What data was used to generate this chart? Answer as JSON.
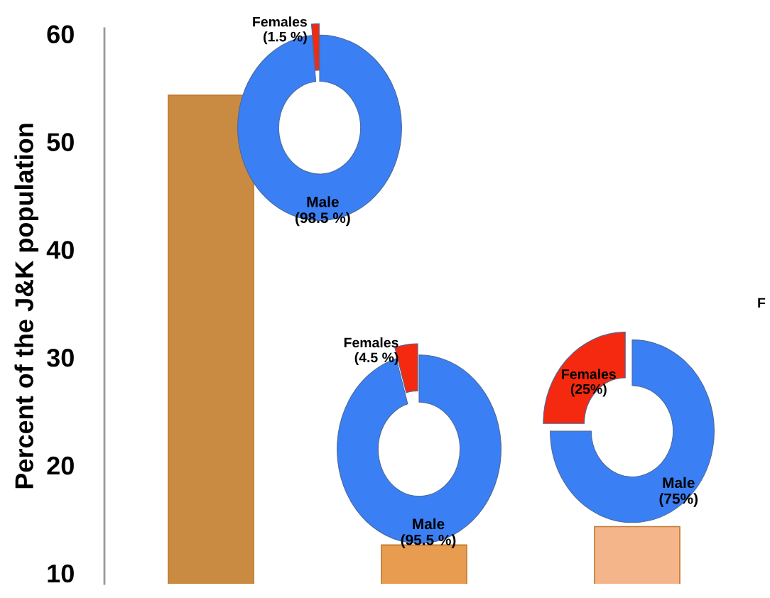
{
  "chart_data": [
    {
      "type": "bar",
      "ylabel": "Percent of the J&K population",
      "categories": [
        null,
        null,
        null
      ],
      "values": [
        54.3,
        12.6,
        14.3
      ],
      "colors": [
        "#c98a41",
        "#e89c50",
        "#f5b58b"
      ],
      "ylim": [
        9,
        60.5
      ],
      "yticks": [
        10,
        20,
        30,
        40,
        50,
        60
      ],
      "grid": false,
      "annotations": [
        "F"
      ]
    },
    {
      "type": "donut",
      "categories": [
        "Females",
        "Male"
      ],
      "values": [
        1.5,
        98.5
      ],
      "colors": [
        "#f5290f",
        "#3b7ff5"
      ],
      "value_labels": [
        "(1.5 %)",
        "(98.5 %)"
      ]
    },
    {
      "type": "donut",
      "categories": [
        "Females",
        "Male"
      ],
      "values": [
        4.5,
        95.5
      ],
      "colors": [
        "#f5290f",
        "#3b7ff5"
      ],
      "value_labels": [
        "(4.5 %)",
        "(95.5 %)"
      ]
    },
    {
      "type": "donut",
      "categories": [
        "Females",
        "Male"
      ],
      "values": [
        25,
        75
      ],
      "colors": [
        "#f5290f",
        "#3b7ff5"
      ],
      "value_labels": [
        "(25%)",
        "(75%)"
      ]
    }
  ]
}
